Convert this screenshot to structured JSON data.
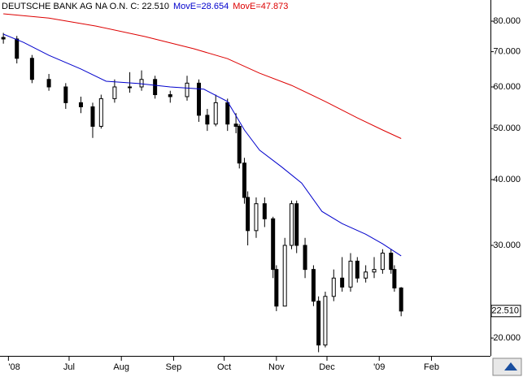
{
  "chart_data": {
    "type": "candlestick",
    "title": "DEUTSCHE BANK AG NA O.N. C: 22.510",
    "log_scale": true,
    "candle_color": "#000000",
    "x": [
      -9,
      -1,
      8,
      18,
      28,
      37,
      44,
      49,
      57,
      66,
      73,
      81,
      90,
      100,
      107,
      112,
      117,
      124,
      129,
      131,
      134,
      136,
      141,
      146,
      151,
      153,
      158,
      162,
      165,
      170,
      175,
      178,
      182,
      187,
      192,
      197,
      201,
      206,
      211,
      216,
      221,
      223,
      227
    ],
    "open": [
      74.5,
      74,
      68,
      62,
      60,
      56,
      55,
      50.5,
      57,
      60,
      60,
      62,
      58,
      57.5,
      61,
      53,
      51,
      56,
      51,
      50.5,
      43,
      37,
      32,
      36,
      33.7,
      27,
      23,
      30,
      36,
      30,
      27,
      23.5,
      19.4,
      24,
      26,
      25,
      28,
      26,
      26.7,
      27,
      29,
      27,
      24.9
    ],
    "high": [
      76,
      75,
      69,
      63.5,
      61,
      57.5,
      56,
      58,
      62,
      64,
      64.5,
      63,
      59,
      63,
      62,
      54.5,
      58,
      57,
      53.5,
      51,
      44,
      38,
      37,
      37,
      34,
      27.5,
      31,
      36.5,
      36.5,
      31,
      27.5,
      24,
      24.5,
      27,
      28.5,
      29,
      28.5,
      27.5,
      28.5,
      29.5,
      29.5,
      27.5,
      25
    ],
    "low": [
      72.5,
      66.5,
      61,
      59,
      54.5,
      53.5,
      48,
      50,
      56,
      58.5,
      59,
      57,
      56,
      56.5,
      51.5,
      49.5,
      50.5,
      49.5,
      49,
      42,
      36,
      30,
      31,
      32.5,
      26,
      22.5,
      23,
      29.5,
      29,
      26,
      23,
      18.8,
      19.2,
      23.5,
      24.5,
      24.5,
      25.5,
      25.5,
      26,
      26.5,
      26.5,
      24.5,
      22
    ],
    "close": [
      74,
      68,
      62,
      60,
      56,
      55,
      50.5,
      57,
      60,
      60,
      62,
      58,
      57.5,
      61,
      53,
      51,
      56,
      51,
      50.5,
      43,
      37,
      32,
      36,
      33.7,
      27,
      23,
      30,
      36,
      30,
      27,
      23.5,
      19.4,
      24,
      26,
      25,
      28,
      26,
      26.7,
      27,
      29,
      27,
      24.9,
      22.51
    ],
    "series": [
      {
        "name": "MovE=28.654",
        "color": "#0000cc",
        "x": [
          -9,
          3,
          18,
          37,
          52,
          71,
          90,
          110,
          124,
          134,
          143,
          156,
          168,
          180,
          192,
          206,
          216,
          227
        ],
        "values": [
          75.6,
          72.9,
          68.9,
          64.9,
          61.5,
          60.9,
          60.0,
          59.4,
          56.3,
          49.7,
          45.5,
          42.3,
          39.4,
          34.8,
          33.0,
          31.5,
          30.2,
          28.654
        ]
      },
      {
        "name": "MovE=47.873",
        "color": "#dd0000",
        "x": [
          -9,
          18,
          46,
          75,
          104,
          124,
          143,
          162,
          182,
          201,
          216,
          227
        ],
        "values": [
          82.6,
          81.1,
          78.3,
          74.8,
          70.9,
          67.9,
          63.7,
          60.4,
          56.3,
          52.4,
          49.7,
          47.873
        ]
      }
    ],
    "last_price": {
      "value": 22.51,
      "label": "22.510"
    },
    "xlim": [
      -11,
      280
    ],
    "xticks": [
      {
        "value": -6,
        "label": "'08"
      },
      {
        "value": 30,
        "label": "Jul"
      },
      {
        "value": 61,
        "label": "Aug"
      },
      {
        "value": 92,
        "label": "Sep"
      },
      {
        "value": 122,
        "label": "Oct"
      },
      {
        "value": 153,
        "label": "Nov"
      },
      {
        "value": 183,
        "label": "Dec"
      },
      {
        "value": 214,
        "label": "'09"
      },
      {
        "value": 245,
        "label": "Feb"
      }
    ],
    "ylim": [
      18.5,
      83.5
    ],
    "yticks": [
      {
        "value": 80,
        "label": "80.000"
      },
      {
        "value": 70,
        "label": "70.000"
      },
      {
        "value": 60,
        "label": "60.000"
      },
      {
        "value": 50,
        "label": "50.000"
      },
      {
        "value": 40,
        "label": "40.000"
      },
      {
        "value": 30,
        "label": "30.000"
      },
      {
        "value": 20,
        "label": "20.000"
      }
    ]
  }
}
